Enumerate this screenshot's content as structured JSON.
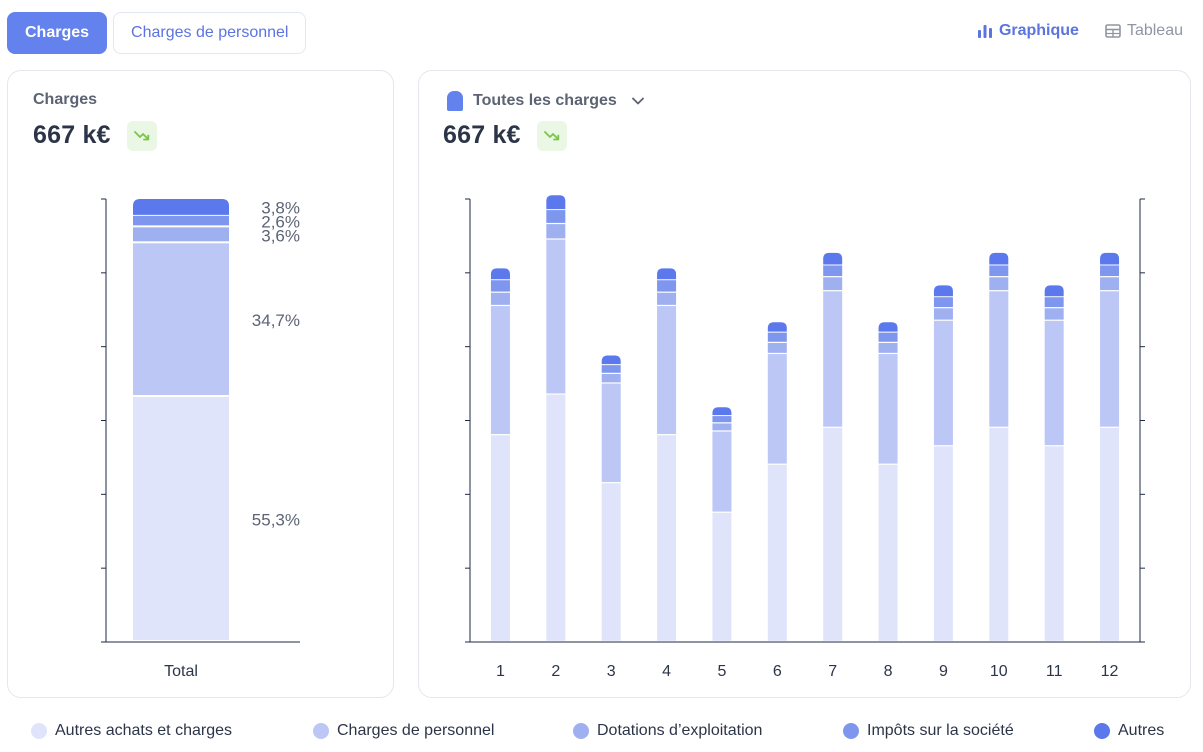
{
  "tabs": [
    {
      "label": "Charges",
      "active": true
    },
    {
      "label": "Charges de personnel",
      "active": false
    }
  ],
  "view_toggle": {
    "graph_label": "Graphique",
    "table_label": "Tableau"
  },
  "left_card": {
    "title": "Charges",
    "amount": "667 k€",
    "x_label": "Total"
  },
  "right_card": {
    "dropdown_label": "Toutes les charges",
    "amount": "667 k€"
  },
  "colors": {
    "autres_achats": "#e0e4fb",
    "personnel": "#bcc7f5",
    "dotations": "#9fb0f1",
    "impots": "#7f96ef",
    "autres": "#5b78ec",
    "accent": "#6482ee",
    "trend_green": "#7cc34a"
  },
  "legend": [
    {
      "label": "Autres achats et charges",
      "color": "#e0e4fb"
    },
    {
      "label": "Charges de personnel",
      "color": "#bcc7f5"
    },
    {
      "label": "Dotations d’exploitation",
      "color": "#9fb0f1"
    },
    {
      "label": "Impôts sur la société",
      "color": "#7f96ef"
    },
    {
      "label": "Autres",
      "color": "#5b78ec"
    }
  ],
  "chart_data": [
    {
      "type": "bar",
      "stacked": true,
      "title": "Charges",
      "categories": [
        "Total"
      ],
      "series": [
        {
          "name": "Autres achats et charges",
          "values": [
            55.3
          ],
          "label": "55,3%"
        },
        {
          "name": "Charges de personnel",
          "values": [
            34.7
          ],
          "label": "34,7%"
        },
        {
          "name": "Dotations d’exploitation",
          "values": [
            3.6
          ],
          "label": "3,6%"
        },
        {
          "name": "Impôts sur la société",
          "values": [
            2.6
          ],
          "label": "2,6%"
        },
        {
          "name": "Autres",
          "values": [
            3.8
          ],
          "label": "3,8%"
        }
      ],
      "ylim": [
        0,
        100
      ]
    },
    {
      "type": "bar",
      "stacked": true,
      "title": "Toutes les charges",
      "categories": [
        "1",
        "2",
        "3",
        "4",
        "5",
        "6",
        "7",
        "8",
        "9",
        "10",
        "11",
        "12"
      ],
      "series": [
        {
          "name": "Autres achats et charges",
          "values": [
            28,
            33.5,
            21.5,
            28,
            17.5,
            24,
            29,
            24,
            26.5,
            29,
            26.5,
            29
          ]
        },
        {
          "name": "Charges de personnel",
          "values": [
            17.5,
            21,
            13.5,
            17.5,
            11,
            15,
            18.5,
            15,
            17,
            18.5,
            17,
            18.5
          ]
        },
        {
          "name": "Dotations d’exploitation",
          "values": [
            1.8,
            2.1,
            1.3,
            1.8,
            1.1,
            1.5,
            1.9,
            1.5,
            1.7,
            1.9,
            1.7,
            1.9
          ]
        },
        {
          "name": "Impôts sur la société",
          "values": [
            1.7,
            1.9,
            1.2,
            1.7,
            1,
            1.4,
            1.6,
            1.4,
            1.5,
            1.6,
            1.5,
            1.6
          ]
        },
        {
          "name": "Autres",
          "values": [
            1.6,
            2,
            1.3,
            1.6,
            1.2,
            1.4,
            1.7,
            1.4,
            1.6,
            1.7,
            1.6,
            1.7
          ]
        }
      ],
      "ylim": [
        0,
        60
      ],
      "y_ticks": 7
    }
  ]
}
